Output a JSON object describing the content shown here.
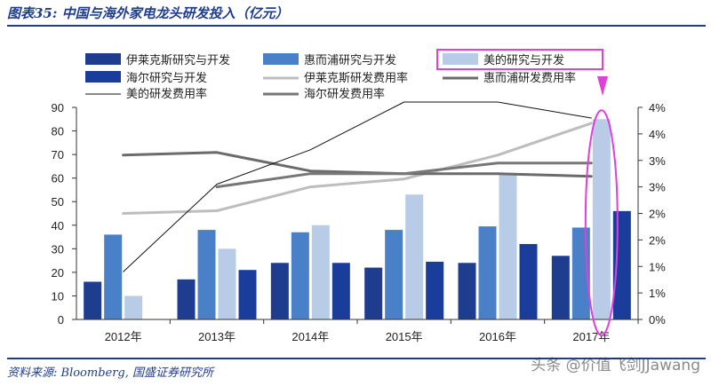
{
  "header": {
    "title": "图表35:  中国与海外家电龙头研发投入（亿元）"
  },
  "footer": {
    "source": "资料来源:  Bloomberg, 国盛证券研究所",
    "watermark": "头条 @价值飞剑JJawang"
  },
  "chart_data": {
    "type": "bar",
    "categories": [
      "2012年",
      "2013年",
      "2014年",
      "2015年",
      "2016年",
      "2017年"
    ],
    "ylim": [
      0,
      90
    ],
    "yticks": [
      "0",
      "10",
      "20",
      "30",
      "40",
      "50",
      "60",
      "70",
      "80",
      "90"
    ],
    "y2lim": [
      0,
      4
    ],
    "y2ticks": [
      "0%",
      "1%",
      "1%",
      "2%",
      "2%",
      "3%",
      "3%",
      "4%",
      "4%"
    ],
    "bar_series": [
      {
        "name": "伊莱克斯研究与开发",
        "color": "#1f3d8f",
        "values": [
          16,
          17,
          24,
          22,
          24,
          27
        ]
      },
      {
        "name": "惠而浦研究与开发",
        "color": "#4a80c8",
        "values": [
          36,
          38,
          37,
          38,
          39.5,
          39
        ]
      },
      {
        "name": "美的研究与开发",
        "color": "#b8cce8",
        "values": [
          10,
          30,
          40,
          53,
          62,
          85
        ]
      },
      {
        "name": "海尔研究与开发",
        "color": "#1a3d9c",
        "values": [
          null,
          21,
          24,
          24.5,
          32,
          46
        ]
      }
    ],
    "line_series": [
      {
        "name": "伊莱克斯研发费用率",
        "color": "#bdbdbd",
        "width": 3,
        "values": [
          2.0,
          2.05,
          2.5,
          2.65,
          3.1,
          3.7
        ]
      },
      {
        "name": "惠而浦研发费用率",
        "color": "#6b6b6b",
        "width": 3,
        "values": [
          3.1,
          3.15,
          2.8,
          2.75,
          2.75,
          2.7
        ]
      },
      {
        "name": "美的研发费用率",
        "color": "#111111",
        "width": 1,
        "values": [
          0.9,
          2.55,
          3.2,
          4.1,
          4.1,
          3.8
        ]
      },
      {
        "name": "海尔研发费用率",
        "color": "#777777",
        "width": 3,
        "values": [
          null,
          2.5,
          2.75,
          2.75,
          2.95,
          2.95
        ]
      }
    ],
    "legend": {
      "placement": "top"
    },
    "annotation": "magenta ellipse highlighting 2017年 美的研究与开发"
  }
}
